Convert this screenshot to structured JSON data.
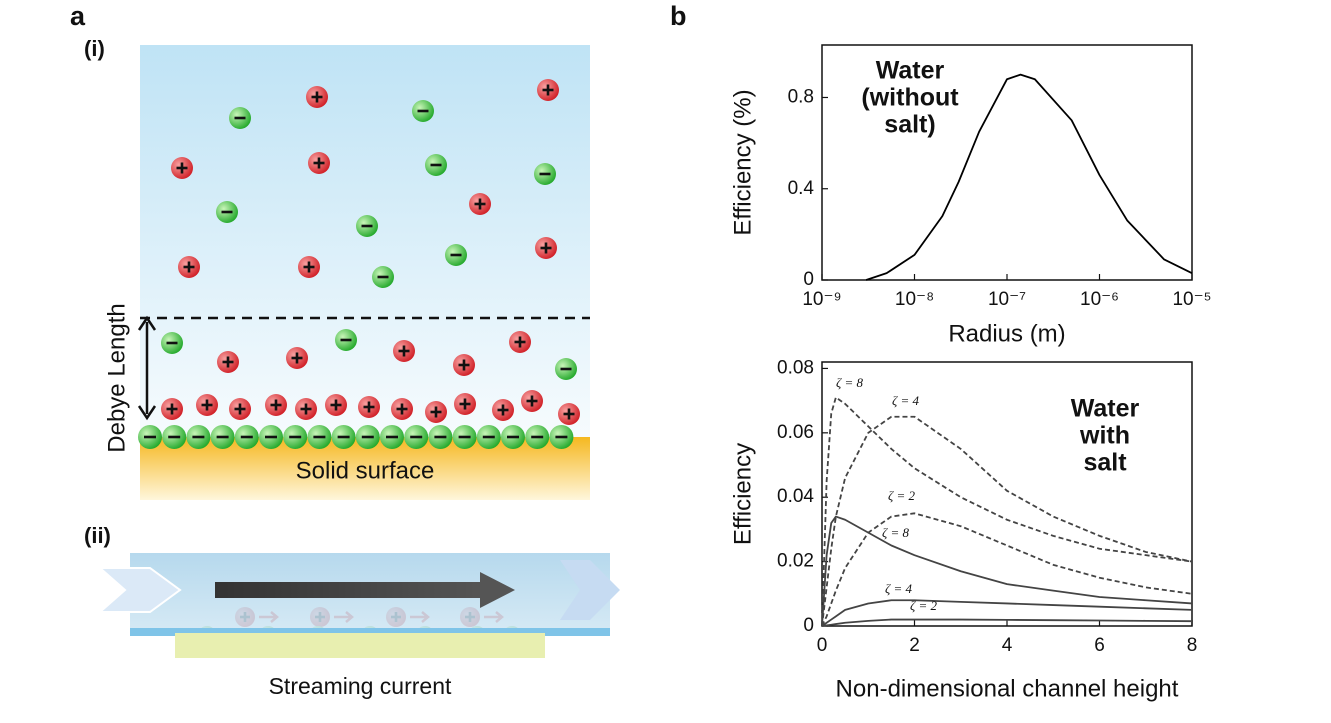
{
  "panel_a": {
    "label": "a",
    "part_i": "(i)",
    "debye": "Debye Length",
    "surface": "Solid surface",
    "part_ii": "(ii)",
    "caption": "Streaming current"
  },
  "panel_b": {
    "label": "b"
  },
  "chart_data": [
    {
      "type": "line",
      "x_label": "Radius (m)",
      "y_label": "Efficiency (%)",
      "annotation": [
        "Water",
        "(without",
        "salt)"
      ],
      "x_scale": "log",
      "xlim": [
        1e-09,
        1e-05
      ],
      "xticks": [
        {
          "value": 1e-09,
          "label": "10⁻⁹"
        },
        {
          "value": 1e-08,
          "label": "10⁻⁸"
        },
        {
          "value": 1e-07,
          "label": "10⁻⁷"
        },
        {
          "value": 1e-06,
          "label": "10⁻⁶"
        },
        {
          "value": 1e-05,
          "label": "10⁻⁵"
        }
      ],
      "ylim": [
        0,
        1.03
      ],
      "yticks": [
        0,
        0.4,
        0.8
      ],
      "x": [
        3e-09,
        5e-09,
        1e-08,
        2e-08,
        3e-08,
        5e-08,
        1e-07,
        1.4e-07,
        2e-07,
        5e-07,
        1e-06,
        2e-06,
        5e-06,
        1e-05
      ],
      "series": [
        {
          "color": "#000000",
          "line_style": "solid",
          "values": [
            0,
            0.03,
            0.11,
            0.28,
            0.43,
            0.65,
            0.88,
            0.9,
            0.88,
            0.7,
            0.46,
            0.26,
            0.09,
            0.03
          ]
        }
      ]
    },
    {
      "type": "line",
      "x_label": "Non-dimensional channel height",
      "y_label": "Efficiency",
      "annotation": [
        "Water",
        "with",
        "salt"
      ],
      "x_scale": "linear",
      "xlim": [
        0,
        8
      ],
      "xticks": [
        0,
        2,
        4,
        6,
        8
      ],
      "ylim": [
        0,
        0.082
      ],
      "yticks": [
        0,
        0.02,
        0.04,
        0.06,
        0.08
      ],
      "x": [
        0,
        0.1,
        0.2,
        0.3,
        0.5,
        1,
        1.5,
        2,
        3,
        4,
        5,
        6,
        7,
        8
      ],
      "series": [
        {
          "name": "ζ = 8",
          "color": "#444444",
          "line_style": "dashed",
          "values": [
            0,
            0.045,
            0.066,
            0.071,
            0.069,
            0.062,
            0.055,
            0.049,
            0.04,
            0.033,
            0.028,
            0.024,
            0.022,
            0.02
          ]
        },
        {
          "name": "ζ = 4",
          "color": "#444444",
          "line_style": "dashed",
          "values": [
            0,
            0.012,
            0.024,
            0.034,
            0.046,
            0.06,
            0.065,
            0.065,
            0.055,
            0.042,
            0.034,
            0.028,
            0.023,
            0.02
          ]
        },
        {
          "name": "ζ = 2",
          "color": "#444444",
          "line_style": "dashed",
          "values": [
            0,
            0.003,
            0.007,
            0.011,
            0.018,
            0.029,
            0.034,
            0.035,
            0.031,
            0.025,
            0.019,
            0.015,
            0.012,
            0.01
          ]
        },
        {
          "name": "ζ = 8",
          "color": "#444444",
          "line_style": "solid",
          "values": [
            0,
            0.022,
            0.032,
            0.034,
            0.033,
            0.029,
            0.025,
            0.022,
            0.017,
            0.013,
            0.011,
            0.009,
            0.008,
            0.007
          ]
        },
        {
          "name": "ζ = 4",
          "color": "#444444",
          "line_style": "solid",
          "values": [
            0,
            0.001,
            0.002,
            0.003,
            0.005,
            0.007,
            0.008,
            0.008,
            0.0075,
            0.007,
            0.0065,
            0.006,
            0.0055,
            0.005
          ]
        },
        {
          "name": "ζ = 2",
          "color": "#444444",
          "line_style": "solid",
          "values": [
            0,
            0.0002,
            0.0004,
            0.0006,
            0.001,
            0.0016,
            0.002,
            0.002,
            0.002,
            0.0019,
            0.0018,
            0.0017,
            0.0016,
            0.0015
          ]
        }
      ]
    }
  ]
}
